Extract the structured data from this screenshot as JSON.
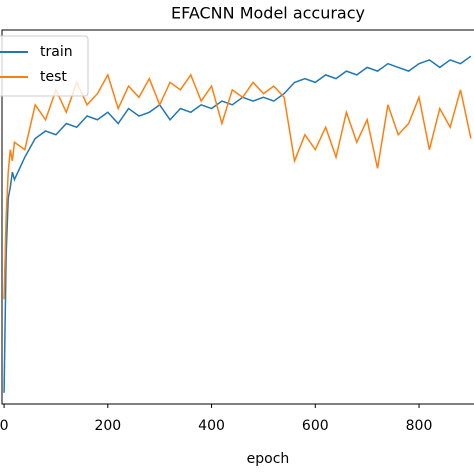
{
  "chart_data": {
    "type": "line",
    "title": "EFACNN Model accuracy",
    "x_label": "epoch",
    "x": [
      0,
      4,
      8,
      12,
      16,
      20,
      40,
      60,
      80,
      100,
      120,
      140,
      160,
      180,
      200,
      220,
      240,
      260,
      280,
      300,
      320,
      340,
      360,
      380,
      400,
      420,
      440,
      460,
      480,
      500,
      520,
      540,
      560,
      580,
      600,
      620,
      640,
      660,
      680,
      700,
      720,
      740,
      760,
      780,
      800,
      820,
      840,
      860,
      880,
      900
    ],
    "series": [
      {
        "name": "train",
        "color": "#1f77b4",
        "values": [
          0.03,
          0.4,
          0.55,
          0.58,
          0.62,
          0.6,
          0.66,
          0.71,
          0.73,
          0.72,
          0.75,
          0.74,
          0.77,
          0.76,
          0.78,
          0.75,
          0.79,
          0.77,
          0.78,
          0.8,
          0.76,
          0.79,
          0.78,
          0.8,
          0.79,
          0.81,
          0.8,
          0.82,
          0.81,
          0.82,
          0.81,
          0.83,
          0.86,
          0.87,
          0.86,
          0.88,
          0.87,
          0.89,
          0.88,
          0.9,
          0.89,
          0.91,
          0.9,
          0.89,
          0.91,
          0.92,
          0.9,
          0.92,
          0.91,
          0.93
        ]
      },
      {
        "name": "test",
        "color": "#ff7f0e",
        "values": [
          0.28,
          0.5,
          0.62,
          0.68,
          0.65,
          0.7,
          0.68,
          0.8,
          0.76,
          0.84,
          0.78,
          0.86,
          0.8,
          0.83,
          0.88,
          0.79,
          0.85,
          0.82,
          0.87,
          0.8,
          0.86,
          0.84,
          0.88,
          0.81,
          0.85,
          0.75,
          0.84,
          0.82,
          0.86,
          0.83,
          0.85,
          0.82,
          0.65,
          0.72,
          0.68,
          0.74,
          0.66,
          0.78,
          0.7,
          0.76,
          0.63,
          0.8,
          0.72,
          0.75,
          0.82,
          0.68,
          0.79,
          0.74,
          0.84,
          0.71
        ]
      }
    ],
    "xlim": [
      -4,
      906
    ],
    "xticks": [
      0,
      200,
      400,
      600,
      800
    ],
    "ylim": [
      0,
      1
    ],
    "legend": "upper left"
  }
}
